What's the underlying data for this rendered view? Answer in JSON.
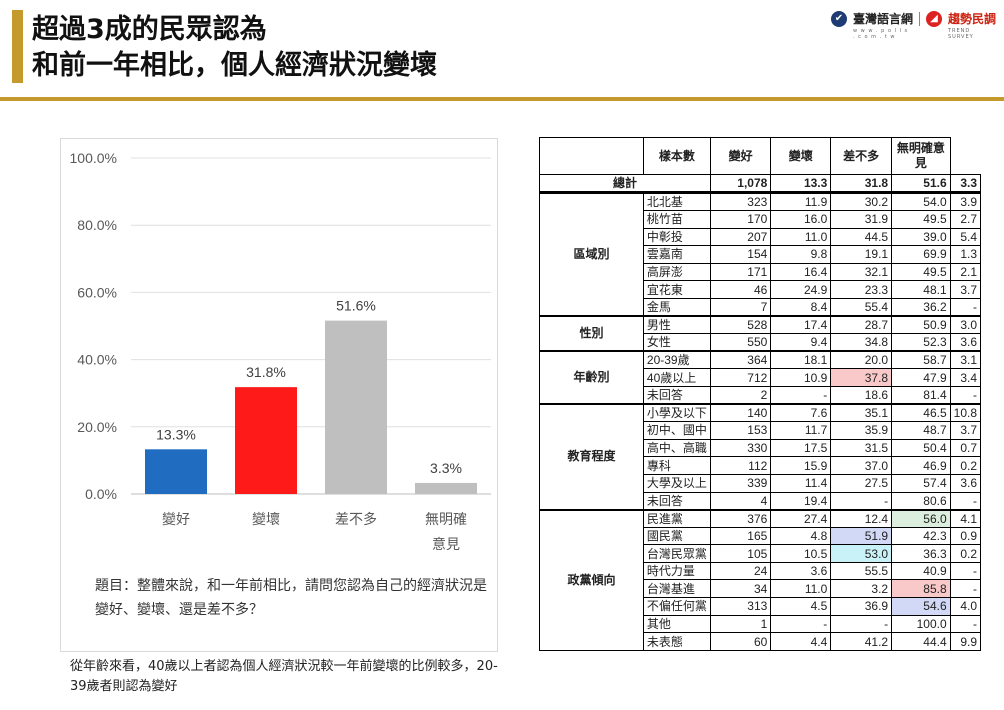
{
  "header": {
    "title_line1": "超過3成的民眾認為",
    "title_line2": "和前一年相比，個人經濟狀況變壞",
    "logo_left": "臺灣語言網",
    "logo_right": "趨勢民調",
    "logo_left_sub": "w w w . p o l l s . c o m . t w",
    "logo_right_sub": "TREND SURVEY"
  },
  "chart_data": {
    "type": "bar",
    "categories": [
      "變好",
      "變壞",
      "差不多",
      "無明確意見"
    ],
    "category_lines": [
      [
        "變好"
      ],
      [
        "變壞"
      ],
      [
        "差不多"
      ],
      [
        "無明確",
        "意見"
      ]
    ],
    "values": [
      13.3,
      31.8,
      51.6,
      3.3
    ],
    "data_labels": [
      "13.3%",
      "31.8%",
      "51.6%",
      "3.3%"
    ],
    "colors": [
      "#1f6cc0",
      "#ff1a1a",
      "#bfbfbf",
      "#bfbfbf"
    ],
    "ylim": [
      0,
      100
    ],
    "yticks": [
      "0.0%",
      "20.0%",
      "40.0%",
      "60.0%",
      "80.0%",
      "100.0%"
    ],
    "ytick_values": [
      0,
      20,
      40,
      60,
      80,
      100
    ],
    "title": "",
    "xlabel": "",
    "ylabel": "",
    "grid": true
  },
  "question_note": "題目：整體來說，和一年前相比，請問您認為自己的經濟狀況是變好、變壞、還是差不多？",
  "caption": "從年齡來看，40歲以上者認為個人經濟狀況較一年前變壞的比例較多，20-39歲者則認為變好",
  "table": {
    "headers": [
      "樣本數",
      "變好",
      "變壞",
      "差不多",
      "無明確意見"
    ],
    "total": {
      "label": "總計",
      "values": [
        "1,078",
        "13.3",
        "31.8",
        "51.6",
        "3.3"
      ]
    },
    "groups": [
      {
        "name": "區域別",
        "rows": [
          {
            "label": "北北基",
            "values": [
              "323",
              "11.9",
              "30.2",
              "54.0",
              "3.9"
            ]
          },
          {
            "label": "桃竹苗",
            "values": [
              "170",
              "16.0",
              "31.9",
              "49.5",
              "2.7"
            ]
          },
          {
            "label": "中彰投",
            "values": [
              "207",
              "11.0",
              "44.5",
              "39.0",
              "5.4"
            ]
          },
          {
            "label": "雲嘉南",
            "values": [
              "154",
              "9.8",
              "19.1",
              "69.9",
              "1.3"
            ]
          },
          {
            "label": "高屏澎",
            "values": [
              "171",
              "16.4",
              "32.1",
              "49.5",
              "2.1"
            ]
          },
          {
            "label": "宜花東",
            "values": [
              "46",
              "24.9",
              "23.3",
              "48.1",
              "3.7"
            ]
          },
          {
            "label": "金馬",
            "values": [
              "7",
              "8.4",
              "55.4",
              "36.2",
              "-"
            ]
          }
        ]
      },
      {
        "name": "性別",
        "rows": [
          {
            "label": "男性",
            "values": [
              "528",
              "17.4",
              "28.7",
              "50.9",
              "3.0"
            ]
          },
          {
            "label": "女性",
            "values": [
              "550",
              "9.4",
              "34.8",
              "52.3",
              "3.6"
            ]
          }
        ]
      },
      {
        "name": "年齡別",
        "rows": [
          {
            "label": "20-39歲",
            "values": [
              "364",
              "18.1",
              "20.0",
              "58.7",
              "3.1"
            ]
          },
          {
            "label": "40歲以上",
            "values": [
              "712",
              "10.9",
              "37.8",
              "47.9",
              "3.4"
            ],
            "hl": [
              null,
              null,
              "red",
              null,
              null
            ]
          },
          {
            "label": "未回答",
            "values": [
              "2",
              "-",
              "18.6",
              "81.4",
              "-"
            ]
          }
        ]
      },
      {
        "name": "教育程度",
        "rows": [
          {
            "label": "小學及以下",
            "values": [
              "140",
              "7.6",
              "35.1",
              "46.5",
              "10.8"
            ]
          },
          {
            "label": "初中、國中",
            "values": [
              "153",
              "11.7",
              "35.9",
              "48.7",
              "3.7"
            ]
          },
          {
            "label": "高中、高職",
            "values": [
              "330",
              "17.5",
              "31.5",
              "50.4",
              "0.7"
            ]
          },
          {
            "label": "專科",
            "values": [
              "112",
              "15.9",
              "37.0",
              "46.9",
              "0.2"
            ]
          },
          {
            "label": "大學及以上",
            "values": [
              "339",
              "11.4",
              "27.5",
              "57.4",
              "3.6"
            ]
          },
          {
            "label": "未回答",
            "values": [
              "4",
              "19.4",
              "-",
              "80.6",
              "-"
            ]
          }
        ]
      },
      {
        "name": "政黨傾向",
        "rows": [
          {
            "label": "民進黨",
            "values": [
              "376",
              "27.4",
              "12.4",
              "56.0",
              "4.1"
            ],
            "hl": [
              null,
              null,
              null,
              "green",
              null
            ]
          },
          {
            "label": "國民黨",
            "values": [
              "165",
              "4.8",
              "51.9",
              "42.3",
              "0.9"
            ],
            "hl": [
              null,
              null,
              "blue",
              null,
              null
            ]
          },
          {
            "label": "台灣民眾黨",
            "values": [
              "105",
              "10.5",
              "53.0",
              "36.3",
              "0.2"
            ],
            "hl": [
              null,
              null,
              "cyan",
              null,
              null
            ]
          },
          {
            "label": "時代力量",
            "values": [
              "24",
              "3.6",
              "55.5",
              "40.9",
              "-"
            ]
          },
          {
            "label": "台灣基進",
            "values": [
              "34",
              "11.0",
              "3.2",
              "85.8",
              "-"
            ],
            "hl": [
              null,
              null,
              null,
              "red",
              null
            ]
          },
          {
            "label": "不偏任何黨",
            "values": [
              "313",
              "4.5",
              "36.9",
              "54.6",
              "4.0"
            ],
            "hl": [
              null,
              null,
              null,
              "blue",
              null
            ]
          },
          {
            "label": "其他",
            "values": [
              "1",
              "-",
              "-",
              "100.0",
              "-"
            ]
          },
          {
            "label": "未表態",
            "values": [
              "60",
              "4.4",
              "41.2",
              "44.4",
              "9.9"
            ]
          }
        ]
      }
    ]
  }
}
